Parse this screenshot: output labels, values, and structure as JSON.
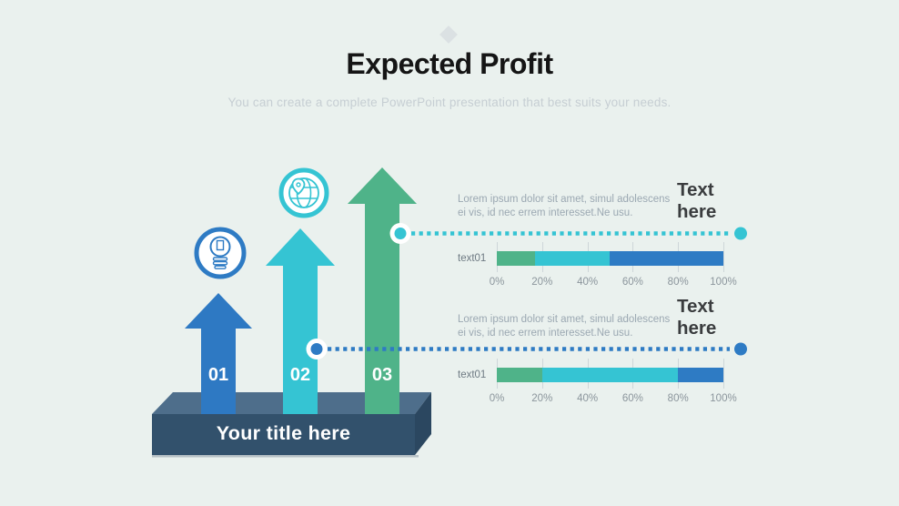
{
  "slide": {
    "title": "Expected Profit",
    "subtitle": "You can create a complete PowerPoint presentation that best suits your needs."
  },
  "graphic": {
    "platform_label": "Your title here",
    "arrows": [
      {
        "label": "01",
        "color": "#2e79c3",
        "icon": "lightbulb-icon"
      },
      {
        "label": "02",
        "color": "#35c4d3",
        "icon": "globe-icon"
      },
      {
        "label": "03",
        "color": "#4fb389",
        "icon": null
      }
    ]
  },
  "sections": [
    {
      "heading": "Text here",
      "body": "Lorem ipsum dolor sit amet, simul adolescens ei vis, id nec errem interesset.Ne usu.",
      "connector_color": "#35c4d3"
    },
    {
      "heading": "Text here",
      "body": "Lorem ipsum dolor sit amet, simul adolescens ei vis, id nec errem interesset.Ne usu.",
      "connector_color": "#2e7bc4"
    }
  ],
  "chart_data": [
    {
      "type": "bar",
      "stacked": true,
      "row_label": "text01",
      "xlim": [
        0,
        100
      ],
      "x_ticks": [
        "0%",
        "20%",
        "40%",
        "60%",
        "80%",
        "100%"
      ],
      "grid": true,
      "segments": [
        {
          "name": "green",
          "value": 17,
          "color": "#4fb389"
        },
        {
          "name": "teal",
          "value": 33,
          "color": "#35c4d3"
        },
        {
          "name": "blue",
          "value": 50,
          "color": "#2e7bc4"
        }
      ]
    },
    {
      "type": "bar",
      "stacked": true,
      "row_label": "text01",
      "xlim": [
        0,
        100
      ],
      "x_ticks": [
        "0%",
        "20%",
        "40%",
        "60%",
        "80%",
        "100%"
      ],
      "grid": true,
      "segments": [
        {
          "name": "green",
          "value": 20,
          "color": "#4fb389"
        },
        {
          "name": "teal",
          "value": 60,
          "color": "#35c4d3"
        },
        {
          "name": "blue",
          "value": 20,
          "color": "#2e7bc4"
        }
      ]
    }
  ],
  "colors": {
    "background": "#eaf1ee",
    "arrow_blue": "#2e79c3",
    "arrow_teal": "#35c4d3",
    "arrow_green": "#4fb389",
    "platform_top": "#4e6e8b",
    "platform_front": "#32516c",
    "platform_side": "#2b4760",
    "bar_green": "#4fb389",
    "bar_teal": "#35c4d3",
    "bar_blue": "#2e7bc4"
  }
}
